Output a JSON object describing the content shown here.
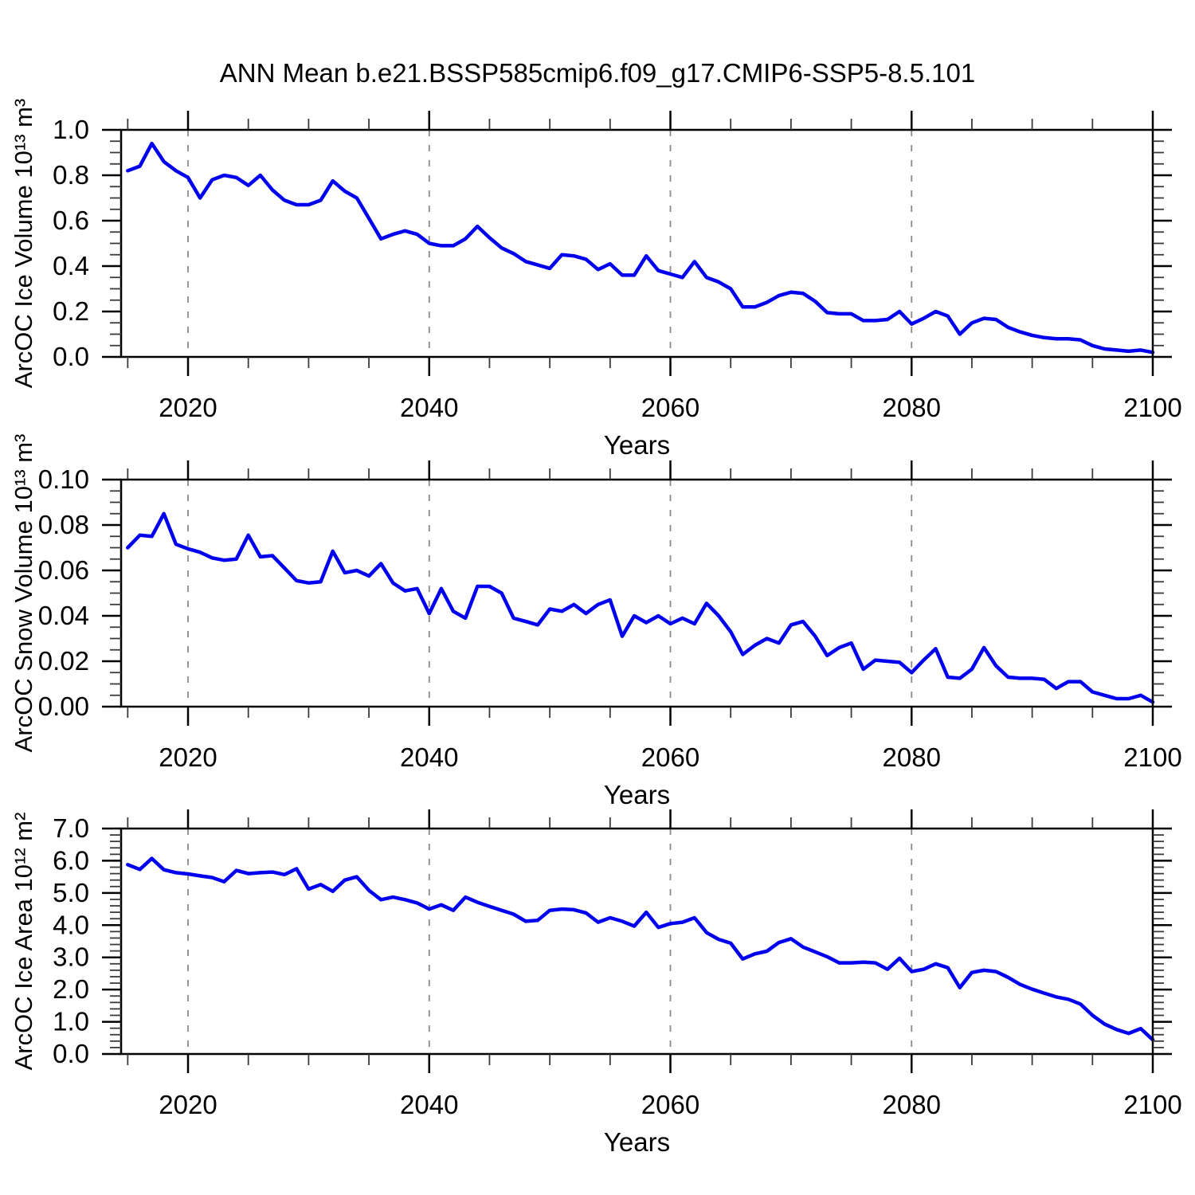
{
  "title": "ANN Mean b.e21.BSSP585cmip6.f09_g17.CMIP6-SSP5-8.5.101",
  "colors": {
    "line": "#0000EE",
    "axis": "#000000",
    "grid": "#8a8a8a",
    "minor_tick": "#3a3a3a",
    "background": "#FFFFFF"
  },
  "x_axis": {
    "label": "Years",
    "major_ticks": [
      2020,
      2040,
      2060,
      2080,
      2100
    ],
    "minor_step": 5,
    "gridline_years": [
      2020,
      2040,
      2060,
      2080
    ],
    "range": [
      2014.45,
      2100
    ]
  },
  "years": [
    2015,
    2016,
    2017,
    2018,
    2019,
    2020,
    2021,
    2022,
    2023,
    2024,
    2025,
    2026,
    2027,
    2028,
    2029,
    2030,
    2031,
    2032,
    2033,
    2034,
    2035,
    2036,
    2037,
    2038,
    2039,
    2040,
    2041,
    2042,
    2043,
    2044,
    2045,
    2046,
    2047,
    2048,
    2049,
    2050,
    2051,
    2052,
    2053,
    2054,
    2055,
    2056,
    2057,
    2058,
    2059,
    2060,
    2061,
    2062,
    2063,
    2064,
    2065,
    2066,
    2067,
    2068,
    2069,
    2070,
    2071,
    2072,
    2073,
    2074,
    2075,
    2076,
    2077,
    2078,
    2079,
    2080,
    2081,
    2082,
    2083,
    2084,
    2085,
    2086,
    2087,
    2088,
    2089,
    2090,
    2091,
    2092,
    2093,
    2094,
    2095,
    2096,
    2097,
    2098,
    2099,
    2100
  ],
  "chart_data": [
    {
      "type": "line",
      "name": "ice-volume",
      "ylabel": "ArcOC Ice Volume 10¹³ m³",
      "ylim": [
        0.0,
        1.0
      ],
      "ytick_values": [
        0.0,
        0.2,
        0.4,
        0.6,
        0.8,
        1.0
      ],
      "ytick_labels": [
        "0.0",
        "0.2",
        "0.4",
        "0.6",
        "0.8",
        "1.0"
      ],
      "y_minor_step": 0.05,
      "xlabel": "Years",
      "grid": "vertical-dashed",
      "legend": "none",
      "values": [
        0.82,
        0.84,
        0.94,
        0.86,
        0.82,
        0.79,
        0.7,
        0.78,
        0.8,
        0.79,
        0.755,
        0.8,
        0.735,
        0.69,
        0.67,
        0.67,
        0.69,
        0.775,
        0.73,
        0.7,
        0.61,
        0.52,
        0.54,
        0.555,
        0.54,
        0.5,
        0.49,
        0.49,
        0.52,
        0.575,
        0.525,
        0.48,
        0.455,
        0.42,
        0.405,
        0.39,
        0.45,
        0.445,
        0.43,
        0.385,
        0.41,
        0.36,
        0.36,
        0.445,
        0.38,
        0.365,
        0.35,
        0.42,
        0.35,
        0.33,
        0.3,
        0.22,
        0.22,
        0.24,
        0.27,
        0.285,
        0.28,
        0.245,
        0.195,
        0.19,
        0.19,
        0.16,
        0.16,
        0.165,
        0.2,
        0.145,
        0.17,
        0.2,
        0.18,
        0.1,
        0.15,
        0.17,
        0.165,
        0.13,
        0.11,
        0.095,
        0.085,
        0.08,
        0.08,
        0.075,
        0.05,
        0.035,
        0.03,
        0.025,
        0.03,
        0.02
      ]
    },
    {
      "type": "line",
      "name": "snow-volume",
      "ylabel": "ArcOC Snow Volume 10¹³ m³",
      "ylim": [
        0.0,
        0.1
      ],
      "ytick_values": [
        0.0,
        0.02,
        0.04,
        0.06,
        0.08,
        0.1
      ],
      "ytick_labels": [
        "0.00",
        "0.02",
        "0.04",
        "0.06",
        "0.08",
        "0.10"
      ],
      "y_minor_step": 0.005,
      "xlabel": "Years",
      "grid": "vertical-dashed",
      "legend": "none",
      "values": [
        0.07,
        0.0755,
        0.075,
        0.085,
        0.0715,
        0.0695,
        0.068,
        0.0655,
        0.0645,
        0.065,
        0.0755,
        0.066,
        0.0665,
        0.061,
        0.0555,
        0.0545,
        0.055,
        0.0685,
        0.059,
        0.06,
        0.0575,
        0.063,
        0.0545,
        0.051,
        0.052,
        0.041,
        0.052,
        0.042,
        0.039,
        0.053,
        0.053,
        0.05,
        0.039,
        0.0375,
        0.036,
        0.043,
        0.042,
        0.045,
        0.041,
        0.045,
        0.047,
        0.031,
        0.04,
        0.037,
        0.04,
        0.0365,
        0.039,
        0.0365,
        0.0455,
        0.04,
        0.033,
        0.023,
        0.027,
        0.03,
        0.028,
        0.036,
        0.0375,
        0.031,
        0.0225,
        0.026,
        0.028,
        0.0165,
        0.0205,
        0.02,
        0.0195,
        0.015,
        0.0205,
        0.0255,
        0.013,
        0.0125,
        0.0165,
        0.026,
        0.018,
        0.013,
        0.0125,
        0.0125,
        0.012,
        0.008,
        0.011,
        0.011,
        0.0065,
        0.005,
        0.0035,
        0.0035,
        0.005,
        0.002
      ]
    },
    {
      "type": "line",
      "name": "ice-area",
      "ylabel": "ArcOC Ice Area 10¹² m²",
      "ylim": [
        0.0,
        7.0
      ],
      "ytick_values": [
        0.0,
        1.0,
        2.0,
        3.0,
        4.0,
        5.0,
        6.0,
        7.0
      ],
      "ytick_labels": [
        "0.0",
        "1.0",
        "2.0",
        "3.0",
        "4.0",
        "5.0",
        "6.0",
        "7.0"
      ],
      "y_minor_step": 0.2,
      "xlabel": "Years",
      "grid": "vertical-dashed",
      "legend": "none",
      "values": [
        5.88,
        5.73,
        6.07,
        5.72,
        5.63,
        5.59,
        5.53,
        5.48,
        5.35,
        5.7,
        5.6,
        5.63,
        5.65,
        5.57,
        5.75,
        5.12,
        5.26,
        5.05,
        5.4,
        5.5,
        5.08,
        4.79,
        4.87,
        4.79,
        4.69,
        4.5,
        4.63,
        4.46,
        4.87,
        4.71,
        4.58,
        4.46,
        4.34,
        4.12,
        4.15,
        4.46,
        4.5,
        4.48,
        4.38,
        4.09,
        4.23,
        4.12,
        3.97,
        4.4,
        3.93,
        4.05,
        4.09,
        4.23,
        3.77,
        3.56,
        3.44,
        2.95,
        3.11,
        3.19,
        3.46,
        3.58,
        3.32,
        3.17,
        3.02,
        2.83,
        2.83,
        2.85,
        2.83,
        2.63,
        2.97,
        2.56,
        2.63,
        2.8,
        2.68,
        2.06,
        2.53,
        2.6,
        2.56,
        2.38,
        2.16,
        2.01,
        1.89,
        1.77,
        1.7,
        1.55,
        1.2,
        0.93,
        0.76,
        0.64,
        0.79,
        0.44
      ]
    }
  ]
}
